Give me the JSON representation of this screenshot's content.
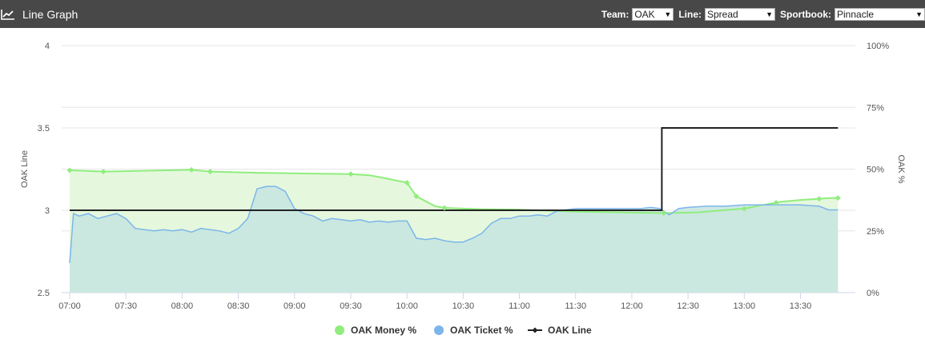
{
  "header": {
    "title": "Line Graph",
    "icon": "line-chart-icon",
    "team_label": "Team:",
    "team_value": "OAK",
    "line_label": "Line:",
    "line_value": "Spread",
    "sportbook_label": "Sportbook:",
    "sportbook_value": "Pinnacle"
  },
  "colors": {
    "header_bg": "#484848",
    "money": "#90ed7d",
    "money_fill": "#e5f8dd",
    "ticket": "#7cb5ec",
    "ticket_fill": "#c6e5df",
    "line": "#222222",
    "grid": "#e6e6e6"
  },
  "chart_data": {
    "type": "line",
    "title": "",
    "x_tick_labels": [
      "07:00",
      "07:30",
      "08:00",
      "08:30",
      "09:00",
      "09:30",
      "10:00",
      "10:30",
      "11:00",
      "11:30",
      "12:00",
      "12:30",
      "13:00",
      "13:30"
    ],
    "y_left": {
      "label": "OAK Line",
      "ticks": [
        "2.5",
        "3",
        "3.5",
        "4"
      ],
      "range": [
        2.5,
        4
      ]
    },
    "y_right": {
      "label": "OAK %",
      "ticks": [
        "0%",
        "25%",
        "50%",
        "75%",
        "100%"
      ],
      "range": [
        0,
        100
      ]
    },
    "x_range_minutes": [
      420,
      835
    ],
    "grid": true,
    "legend_position": "bottom-center",
    "series": [
      {
        "name": "OAK Money %",
        "axis": "right",
        "kind": "area",
        "x": [
          "07:00",
          "07:18",
          "08:05",
          "08:15",
          "08:40",
          "09:00",
          "09:30",
          "09:40",
          "09:45",
          "10:00",
          "10:05",
          "10:15",
          "10:20",
          "10:30",
          "10:40",
          "11:00",
          "11:30",
          "12:00",
          "12:17",
          "12:35",
          "12:50",
          "13:00",
          "13:10",
          "13:20",
          "13:30",
          "13:40",
          "13:45",
          "13:50"
        ],
        "y": [
          49.5,
          49,
          49.7,
          49,
          48.5,
          48.3,
          48,
          47.5,
          46.8,
          44.5,
          39,
          35,
          34.3,
          34,
          33.8,
          33.6,
          32.8,
          32.4,
          32.2,
          32.5,
          33.4,
          34,
          35.5,
          36.8,
          37.5,
          38,
          38.3,
          38.3
        ],
        "markers": [
          "07:00",
          "07:18",
          "08:05",
          "08:15",
          "09:30",
          "10:00",
          "10:05",
          "10:20",
          "12:17",
          "13:00",
          "13:17",
          "13:40",
          "13:50"
        ]
      },
      {
        "name": "OAK Ticket %",
        "axis": "right",
        "kind": "area",
        "x": [
          "07:00",
          "07:02",
          "07:05",
          "07:10",
          "07:15",
          "07:20",
          "07:25",
          "07:30",
          "07:35",
          "07:40",
          "07:45",
          "07:50",
          "07:55",
          "08:00",
          "08:05",
          "08:10",
          "08:15",
          "08:20",
          "08:25",
          "08:30",
          "08:35",
          "08:40",
          "08:45",
          "08:50",
          "08:55",
          "09:00",
          "09:05",
          "09:10",
          "09:15",
          "09:20",
          "09:25",
          "09:30",
          "09:35",
          "09:40",
          "09:45",
          "09:50",
          "09:55",
          "10:00",
          "10:05",
          "10:10",
          "10:15",
          "10:20",
          "10:25",
          "10:30",
          "10:35",
          "10:40",
          "10:45",
          "10:50",
          "10:55",
          "11:00",
          "11:05",
          "11:10",
          "11:15",
          "11:20",
          "11:30",
          "11:40",
          "11:50",
          "12:00",
          "12:05",
          "12:10",
          "12:15",
          "12:20",
          "12:25",
          "12:30",
          "12:40",
          "12:50",
          "13:00",
          "13:10",
          "13:20",
          "13:30",
          "13:40",
          "13:45",
          "13:50"
        ],
        "y": [
          12,
          32,
          31,
          32,
          30,
          31,
          32,
          30,
          26,
          25.5,
          25,
          25.5,
          25,
          25.5,
          24.5,
          26,
          25.5,
          25,
          24,
          26,
          30,
          42,
          43,
          43,
          41,
          34,
          32,
          31,
          29,
          30,
          29.5,
          29,
          29.5,
          28.5,
          29,
          28.5,
          29,
          29,
          22,
          21.5,
          22,
          21,
          20.5,
          20.5,
          22,
          24,
          28,
          30,
          30,
          31,
          31,
          31.5,
          31,
          33,
          34,
          34,
          34,
          34,
          34,
          34.5,
          34,
          31.5,
          34,
          34.5,
          35,
          35,
          35.5,
          35.5,
          35.5,
          35.5,
          35,
          33.5,
          33.5
        ]
      },
      {
        "name": "OAK Line",
        "axis": "left",
        "kind": "step",
        "x": [
          "07:00",
          "12:16",
          "12:16",
          "13:50"
        ],
        "y": [
          3,
          3,
          3.5,
          3.5
        ]
      }
    ]
  }
}
